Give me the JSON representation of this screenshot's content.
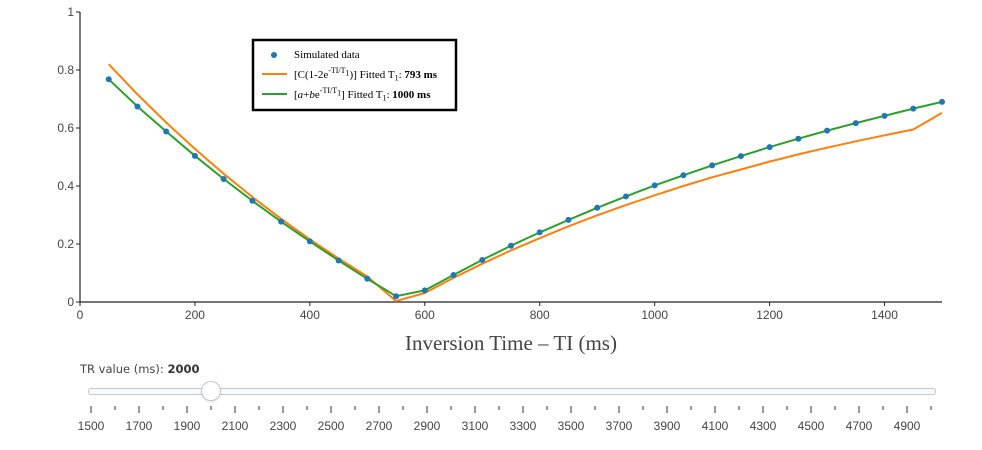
{
  "chart_data": {
    "type": "line",
    "title": "",
    "xlabel": "Inversion Time – TI (ms)",
    "ylabel": "",
    "xlim": [
      0,
      1500
    ],
    "ylim": [
      0,
      1
    ],
    "x_ticks": [
      0,
      200,
      400,
      600,
      800,
      1000,
      1200,
      1400
    ],
    "y_ticks": [
      0,
      0.2,
      0.4,
      0.6,
      0.8,
      1
    ],
    "grid": false,
    "legend_position": "top-left",
    "series": [
      {
        "name": "Simulated data",
        "mode": "markers",
        "color": "#1f77b4",
        "x": [
          50,
          100,
          150,
          200,
          250,
          300,
          350,
          400,
          450,
          500,
          550,
          600,
          650,
          700,
          750,
          800,
          850,
          900,
          950,
          1000,
          1050,
          1100,
          1150,
          1200,
          1250,
          1300,
          1350,
          1400,
          1450,
          1500
        ],
        "y": [
          0.768,
          0.674,
          0.588,
          0.504,
          0.424,
          0.349,
          0.277,
          0.209,
          0.143,
          0.08,
          0.02,
          0.04,
          0.093,
          0.145,
          0.194,
          0.24,
          0.283,
          0.325,
          0.364,
          0.402,
          0.437,
          0.471,
          0.503,
          0.534,
          0.563,
          0.591,
          0.617,
          0.642,
          0.667,
          0.69
        ]
      },
      {
        "name": "[C(1-2e^(-TI/T1))] Fitted T1: 793 ms",
        "mode": "lines",
        "color": "#ff7f0e",
        "x": [
          50,
          100,
          150,
          200,
          250,
          300,
          350,
          400,
          450,
          500,
          550,
          600,
          650,
          700,
          750,
          800,
          850,
          900,
          950,
          1000,
          1050,
          1100,
          1150,
          1200,
          1250,
          1300,
          1350,
          1400,
          1450,
          1500
        ],
        "y": [
          0.82,
          0.716,
          0.619,
          0.528,
          0.442,
          0.362,
          0.287,
          0.216,
          0.15,
          0.088,
          0.003,
          0.031,
          0.083,
          0.132,
          0.178,
          0.22,
          0.261,
          0.299,
          0.334,
          0.368,
          0.4,
          0.43,
          0.457,
          0.484,
          0.509,
          0.532,
          0.554,
          0.575,
          0.595,
          0.652
        ]
      },
      {
        "name": "[a+be^(-TI/T1)] Fitted T1: 1000 ms",
        "mode": "lines",
        "color": "#2ca02c",
        "x": [
          50,
          100,
          150,
          200,
          250,
          300,
          350,
          400,
          450,
          500,
          550,
          600,
          650,
          700,
          750,
          800,
          850,
          900,
          950,
          1000,
          1050,
          1100,
          1150,
          1200,
          1250,
          1300,
          1350,
          1400,
          1450,
          1500
        ],
        "y": [
          0.768,
          0.674,
          0.588,
          0.504,
          0.424,
          0.349,
          0.277,
          0.209,
          0.143,
          0.08,
          0.02,
          0.04,
          0.093,
          0.145,
          0.194,
          0.24,
          0.283,
          0.325,
          0.364,
          0.402,
          0.437,
          0.471,
          0.503,
          0.534,
          0.563,
          0.591,
          0.617,
          0.642,
          0.667,
          0.69
        ]
      }
    ]
  },
  "legend": {
    "items": [
      {
        "kind": "marker",
        "color": "#1f77b4",
        "parts": [
          {
            "t": "Simulated data"
          }
        ]
      },
      {
        "kind": "line",
        "color": "#ff7f0e",
        "parts": [
          {
            "t": "[C(1-2e"
          },
          {
            "t": "-TI/T",
            "sup": true
          },
          {
            "t": "1",
            "sup": true,
            "sub": true
          },
          {
            "t": ")] Fitted T"
          },
          {
            "t": "1",
            "sub": true
          },
          {
            "t": ": "
          },
          {
            "t": "793 ms",
            "bold": true
          }
        ]
      },
      {
        "kind": "line",
        "color": "#2ca02c",
        "parts": [
          {
            "t": "["
          },
          {
            "t": "a",
            "italic": true
          },
          {
            "t": "+"
          },
          {
            "t": "b",
            "italic": true
          },
          {
            "t": "e"
          },
          {
            "t": "-TI/T",
            "sup": true
          },
          {
            "t": "1",
            "sup": true,
            "sub": true
          },
          {
            "t": "] Fitted T"
          },
          {
            "t": "1",
            "sub": true
          },
          {
            "t": ": "
          },
          {
            "t": "1000 ms",
            "bold": true
          }
        ]
      }
    ]
  },
  "slider": {
    "label": "TR value (ms): ",
    "current_value_text": "2000",
    "value": 2000,
    "min": 1500,
    "max": 5000,
    "step": 100,
    "tick_labels": [
      1500,
      1700,
      1900,
      2100,
      2300,
      2500,
      2700,
      2900,
      3100,
      3300,
      3500,
      3700,
      3900,
      4100,
      4300,
      4500,
      4700,
      4900
    ]
  }
}
